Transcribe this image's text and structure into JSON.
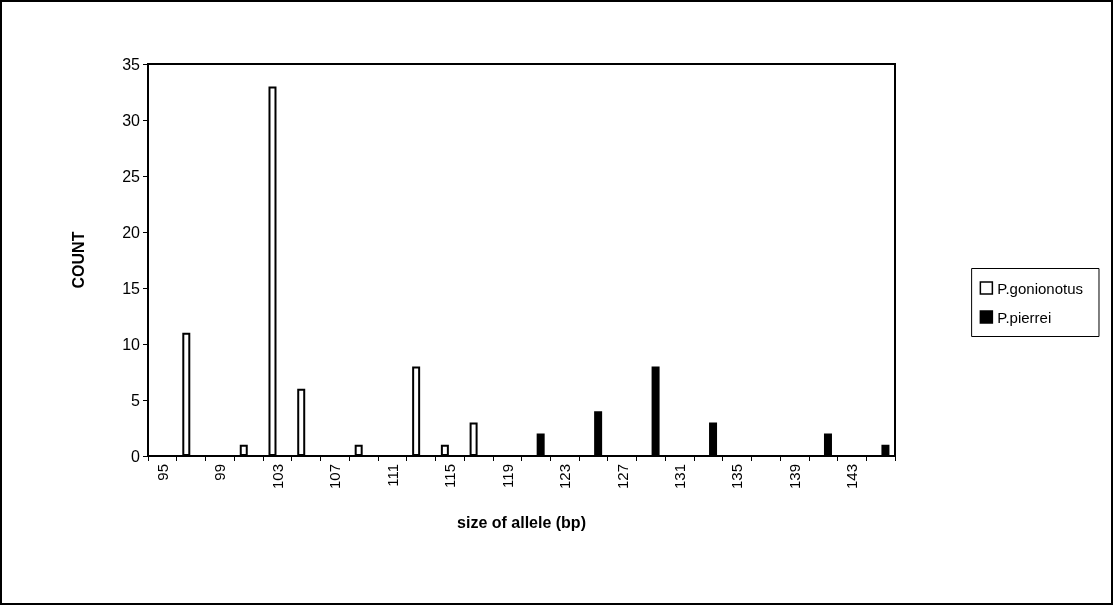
{
  "chart_data": {
    "type": "bar",
    "xlabel": "size of allele (bp)",
    "ylabel": "COUNT",
    "categories": [
      "95",
      null,
      "99",
      null,
      "103",
      null,
      "107",
      null,
      "111",
      null,
      "115",
      null,
      "119",
      null,
      "123",
      null,
      "127",
      null,
      "131",
      null,
      "135",
      null,
      "139",
      null,
      "143",
      null
    ],
    "series": [
      {
        "name": "P.gonionotus",
        "color": "#ffffff",
        "values": [
          null,
          11,
          null,
          1,
          33,
          6,
          null,
          1,
          null,
          8,
          1,
          3,
          null,
          null,
          null,
          null,
          null,
          null,
          null,
          null,
          null,
          null,
          null,
          null,
          null,
          null
        ]
      },
      {
        "name": "P.pierrei",
        "color": "#000000",
        "values": [
          null,
          null,
          null,
          null,
          null,
          null,
          null,
          null,
          null,
          null,
          null,
          null,
          null,
          2,
          null,
          4,
          null,
          8,
          null,
          3,
          null,
          null,
          null,
          2,
          null,
          1
        ]
      }
    ],
    "ylim": [
      0,
      35
    ],
    "yticks": [
      0,
      5,
      10,
      15,
      20,
      25,
      30,
      35
    ],
    "grid": false,
    "legend": "right"
  }
}
